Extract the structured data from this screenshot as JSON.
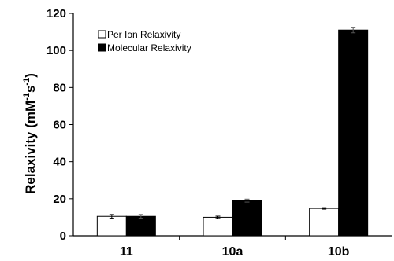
{
  "chart_data": {
    "type": "bar",
    "categories": [
      "11",
      "10a",
      "10b"
    ],
    "series": [
      {
        "name": "Per Ion Relaxivity",
        "values": [
          10.5,
          10.0,
          14.8
        ],
        "errors": [
          1.0,
          0.6,
          0.4
        ],
        "color": "#ffffff"
      },
      {
        "name": "Molecular Relaxivity",
        "values": [
          10.5,
          19.0,
          111.0
        ],
        "errors": [
          1.0,
          0.8,
          1.5
        ],
        "color": "#000000"
      }
    ],
    "ylabel_main": "Relaxivity (mM",
    "ylabel_sup1": "-1",
    "ylabel_mid": "s",
    "ylabel_sup2": "-1",
    "ylabel_end": ")",
    "ylim": [
      0,
      120
    ],
    "yticks": [
      "0",
      "20",
      "40",
      "60",
      "80",
      "100",
      "120"
    ],
    "grid": false,
    "legend_position": "top-left"
  }
}
